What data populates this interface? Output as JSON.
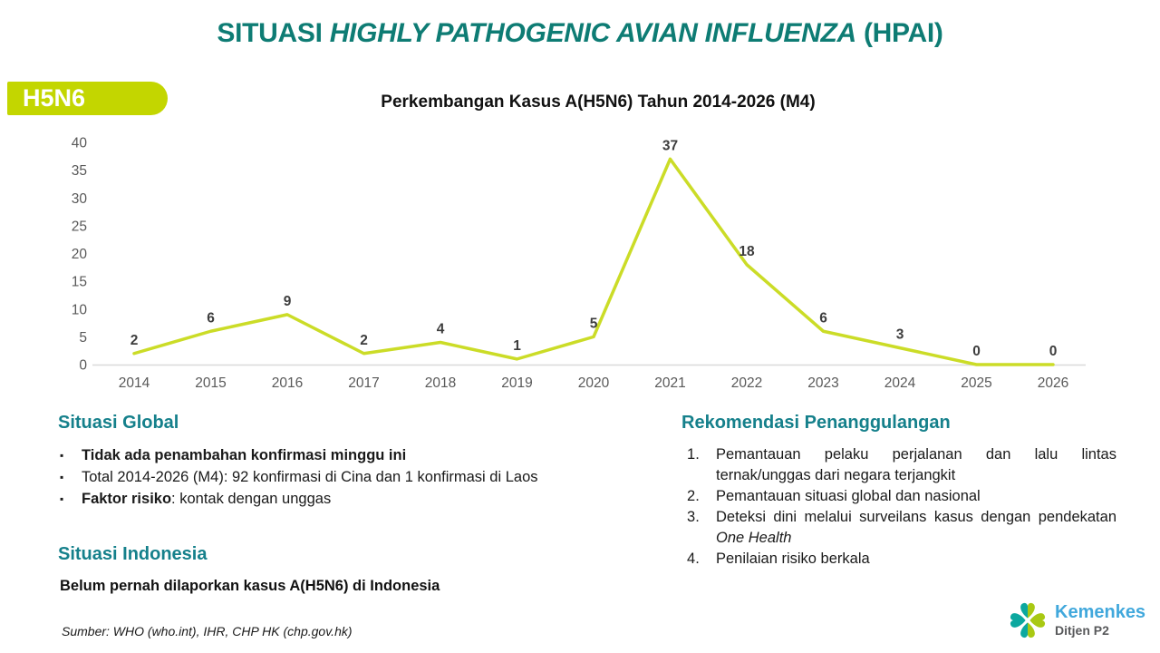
{
  "colors": {
    "title_teal": "#0E7C74",
    "header_teal": "#15808B",
    "badge_green": "#C3D600",
    "axis_gray": "#595959",
    "label_dark": "#3D3D3D",
    "logo_teal": "#0CA89F",
    "logo_green": "#A9C913",
    "logo_blue": "#41A8DC",
    "logo_gray": "#58595B"
  },
  "slide": {
    "title": {
      "prefix": "SITUASI ",
      "italic": "HIGHLY PATHOGENIC AVIAN INFLUENZA",
      "suffix": " (HPAI)"
    },
    "badge": "H5N6"
  },
  "chart_data": {
    "type": "line",
    "title": "Perkembangan Kasus A(H5N6) Tahun 2014-2026 (M4)",
    "categories": [
      "2014",
      "2015",
      "2016",
      "2017",
      "2018",
      "2019",
      "2020",
      "2021",
      "2022",
      "2023",
      "2024",
      "2025",
      "2026"
    ],
    "values": [
      2,
      6,
      9,
      2,
      4,
      1,
      5,
      37,
      18,
      6,
      3,
      0,
      0
    ],
    "ylim": [
      0,
      40
    ],
    "yticks": [
      0,
      5,
      10,
      15,
      20,
      25,
      30,
      35,
      40
    ],
    "line_color": "#CBDC27",
    "grid": false,
    "data_labels": true,
    "legend": "none"
  },
  "global_section": {
    "heading": "Situasi Global",
    "bullets": [
      {
        "bold": "Tidak ada penambahan konfirmasi minggu ini",
        "rest": ""
      },
      {
        "bold": "",
        "rest": "Total 2014-2026 (M4): 92 konfirmasi di Cina dan 1 konfirmasi di Laos"
      },
      {
        "bold": "Faktor risiko",
        "rest": ": kontak dengan unggas"
      }
    ]
  },
  "indonesia_section": {
    "heading": "Situasi Indonesia",
    "text": "Belum pernah dilaporkan kasus A(H5N6) di Indonesia"
  },
  "recommendations": {
    "heading": "Rekomendasi Penanggulangan",
    "items": [
      {
        "pre": "Pemantauan pelaku perjalanan dan lalu lintas ternak/unggas dari negara terjangkit",
        "italic": "",
        "post": ""
      },
      {
        "pre": "Pemantauan situasi global dan nasional",
        "italic": "",
        "post": ""
      },
      {
        "pre": "Deteksi dini melalui surveilans kasus dengan pendekatan ",
        "italic": "One Health",
        "post": ""
      },
      {
        "pre": "Penilaian risiko berkala",
        "italic": "",
        "post": ""
      }
    ]
  },
  "footer": {
    "source": "Sumber: WHO (who.int), IHR, CHP HK (chp.gov.hk)"
  },
  "logo": {
    "name": "Kemenkes",
    "sub": "Ditjen P2"
  }
}
